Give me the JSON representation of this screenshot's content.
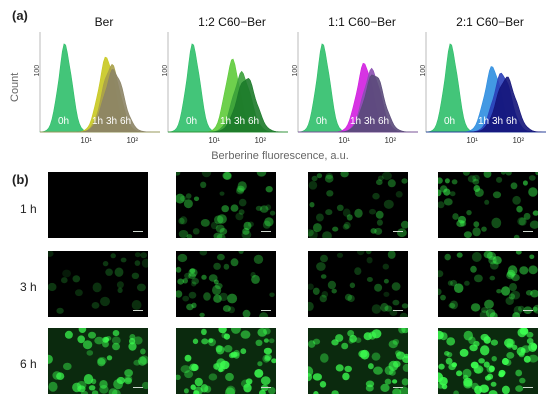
{
  "panel_a_label": "(a)",
  "panel_b_label": "(b)",
  "chart_data": [
    {
      "type": "area",
      "title": "Ber",
      "ylabel": "Count",
      "xlabel": "Berberine fluorescence, a.u.",
      "x_scale": "log",
      "xlim": [
        1,
        400
      ],
      "ylim": [
        0,
        150
      ],
      "x_ticks": [
        "10¹",
        "10²"
      ],
      "y_ticks": [
        "100"
      ],
      "series": [
        {
          "name": "0h",
          "color": "#2fbf6a",
          "peak_x": 3.5,
          "peak_y": 140,
          "width_decades": 0.45
        },
        {
          "name": "1h",
          "color": "#c8c820",
          "peak_x": 28,
          "peak_y": 120,
          "width_decades": 0.55
        },
        {
          "name": "3h",
          "color": "#a8a04a",
          "peak_x": 35,
          "peak_y": 108,
          "width_decades": 0.6
        },
        {
          "name": "6h",
          "color": "#8c8466",
          "peak_x": 40,
          "peak_y": 100,
          "width_decades": 0.65
        }
      ],
      "annotations": [
        "0h",
        "1h",
        "3h",
        "6h"
      ]
    },
    {
      "type": "area",
      "title": "1:2 C60−Ber",
      "ylabel": "Count",
      "x_scale": "log",
      "xlim": [
        1,
        400
      ],
      "ylim": [
        0,
        150
      ],
      "x_ticks": [
        "10¹",
        "10²"
      ],
      "y_ticks": [
        "100"
      ],
      "series": [
        {
          "name": "0h",
          "color": "#2fbf6a",
          "peak_x": 3.5,
          "peak_y": 140,
          "width_decades": 0.45
        },
        {
          "name": "1h",
          "color": "#5ecb3a",
          "peak_x": 25,
          "peak_y": 115,
          "width_decades": 0.5
        },
        {
          "name": "3h",
          "color": "#3aa03a",
          "peak_x": 40,
          "peak_y": 95,
          "width_decades": 0.6
        },
        {
          "name": "6h",
          "color": "#1c7a2a",
          "peak_x": 50,
          "peak_y": 88,
          "width_decades": 0.65
        }
      ],
      "annotations": [
        "0h",
        "1h",
        "3h",
        "6h"
      ]
    },
    {
      "type": "area",
      "title": "1:1 C60−Ber",
      "ylabel": "Count",
      "x_scale": "log",
      "xlim": [
        1,
        400
      ],
      "ylim": [
        0,
        150
      ],
      "x_ticks": [
        "10¹",
        "10²"
      ],
      "y_ticks": [
        "100"
      ],
      "series": [
        {
          "name": "0h",
          "color": "#2fbf6a",
          "peak_x": 3.5,
          "peak_y": 140,
          "width_decades": 0.45
        },
        {
          "name": "1h",
          "color": "#d21ee0",
          "peak_x": 28,
          "peak_y": 110,
          "width_decades": 0.55
        },
        {
          "name": "3h",
          "color": "#8a4fb0",
          "peak_x": 40,
          "peak_y": 100,
          "width_decades": 0.6
        },
        {
          "name": "6h",
          "color": "#5a4a7a",
          "peak_x": 45,
          "peak_y": 95,
          "width_decades": 0.65
        }
      ],
      "annotations": [
        "0h",
        "1h",
        "3h",
        "6h"
      ]
    },
    {
      "type": "area",
      "title": "2:1 C60−Ber",
      "ylabel": "Count",
      "x_scale": "log",
      "xlim": [
        1,
        400
      ],
      "ylim": [
        0,
        150
      ],
      "x_ticks": [
        "10¹",
        "10²"
      ],
      "y_ticks": [
        "100"
      ],
      "series": [
        {
          "name": "0h",
          "color": "#2fbf6a",
          "peak_x": 3.5,
          "peak_y": 140,
          "width_decades": 0.45
        },
        {
          "name": "1h",
          "color": "#2f8ee0",
          "peak_x": 28,
          "peak_y": 105,
          "width_decades": 0.55
        },
        {
          "name": "3h",
          "color": "#2a3fb8",
          "peak_x": 45,
          "peak_y": 95,
          "width_decades": 0.6
        },
        {
          "name": "6h",
          "color": "#14157a",
          "peak_x": 55,
          "peak_y": 88,
          "width_decades": 0.65
        }
      ],
      "annotations": [
        "0h",
        "1h",
        "3h",
        "6h"
      ]
    }
  ],
  "micrographs": {
    "row_labels": [
      "1 h",
      "3 h",
      "6 h"
    ],
    "columns": [
      "Ber",
      "1:2 C60−Ber",
      "1:1 C60−Ber",
      "2:1 C60−Ber"
    ],
    "cell_color": "#3cff50",
    "brightness": [
      [
        0.05,
        0.45,
        0.4,
        0.55
      ],
      [
        0.25,
        0.45,
        0.35,
        0.55
      ],
      [
        0.75,
        0.85,
        0.8,
        0.95
      ]
    ],
    "density": [
      [
        0.0,
        0.55,
        0.45,
        0.55
      ],
      [
        0.3,
        0.5,
        0.4,
        0.6
      ],
      [
        0.6,
        0.75,
        0.6,
        0.85
      ]
    ]
  }
}
